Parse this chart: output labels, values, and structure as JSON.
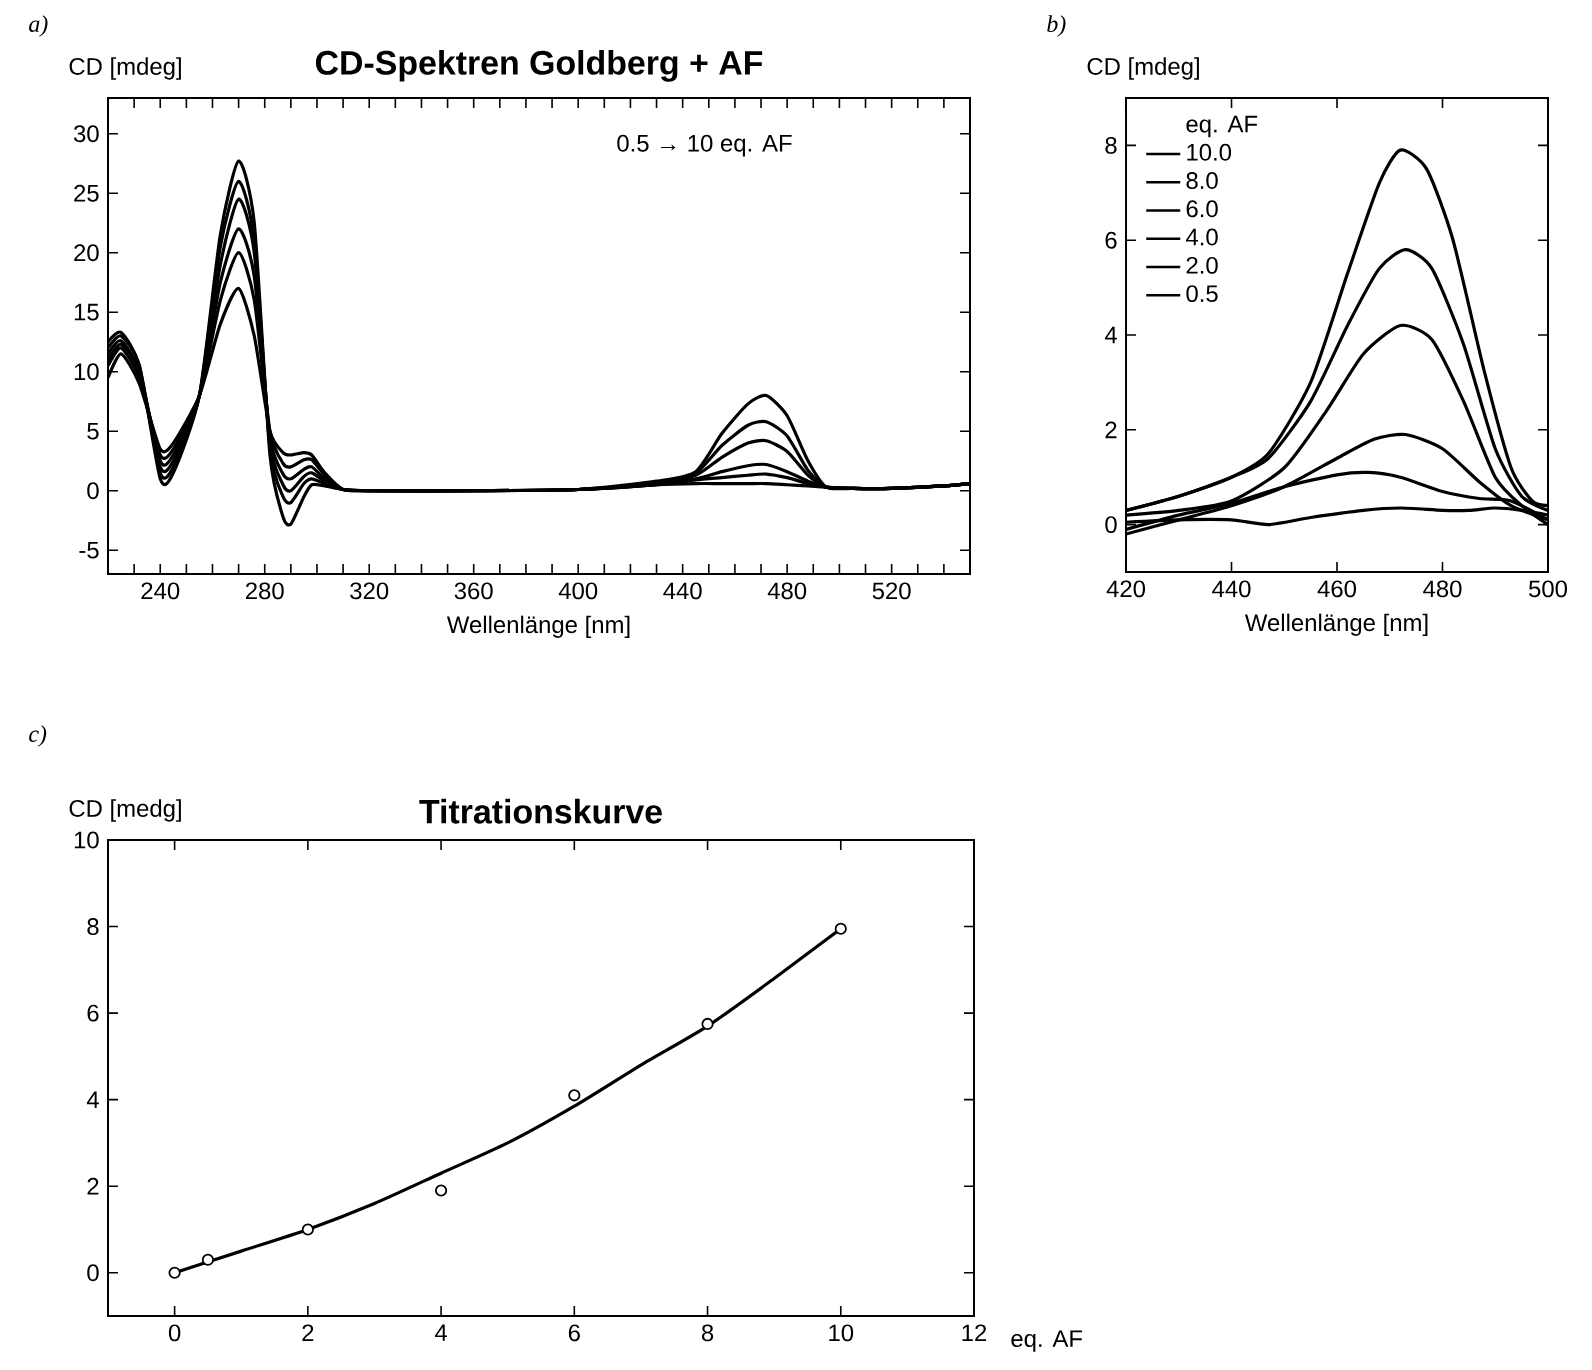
{
  "chart_data": [
    {
      "type": "line",
      "title": "CD-Spektren Goldberg + AF",
      "xlabel": "Wellenlänge [nm]",
      "ylabel": "CD [mdeg]",
      "annotations": [
        "a)",
        "0.5 → 10 eq. AF"
      ],
      "xlim": [
        220,
        550
      ],
      "ylim": [
        -7,
        33
      ],
      "xticks": [
        {
          "value": 230,
          "label": null
        },
        240,
        {
          "value": 250,
          "label": null
        },
        {
          "value": 260,
          "label": null
        },
        {
          "value": 270,
          "label": null
        },
        280,
        {
          "value": 290,
          "label": null
        },
        {
          "value": 300,
          "label": null
        },
        {
          "value": 310,
          "label": null
        },
        320,
        {
          "value": 330,
          "label": null
        },
        {
          "value": 340,
          "label": null
        },
        {
          "value": 350,
          "label": null
        },
        360,
        {
          "value": 370,
          "label": null
        },
        {
          "value": 380,
          "label": null
        },
        {
          "value": 390,
          "label": null
        },
        400,
        {
          "value": 410,
          "label": null
        },
        {
          "value": 420,
          "label": null
        },
        {
          "value": 430,
          "label": null
        },
        440,
        {
          "value": 450,
          "label": null
        },
        {
          "value": 460,
          "label": null
        },
        {
          "value": 470,
          "label": null
        },
        480,
        {
          "value": 490,
          "label": null
        },
        {
          "value": 500,
          "label": null
        },
        {
          "value": 510,
          "label": null
        },
        520,
        {
          "value": 530,
          "label": null
        },
        {
          "value": 540,
          "label": null
        }
      ],
      "yticks": [
        -5,
        0,
        5,
        10,
        15,
        20,
        25,
        30
      ],
      "x": [
        220,
        225,
        232,
        240,
        245,
        255,
        263,
        270,
        276,
        282,
        287,
        290,
        295,
        298,
        303,
        310,
        320,
        360,
        400,
        430,
        445,
        455,
        465,
        472,
        480,
        488,
        495,
        505,
        520,
        540,
        550
      ],
      "series": [
        {
          "color": "#000000",
          "values": [
            9.5,
            11.5,
            9,
            3.5,
            4,
            8,
            14,
            17,
            13,
            5,
            3.2,
            3,
            3.2,
            3,
            1.5,
            0.1,
            0,
            0,
            0.1,
            0.5,
            0.6,
            0.6,
            0.6,
            0.6,
            0.5,
            0.4,
            0.3,
            0.2,
            0.2,
            0.4,
            0.6
          ]
        },
        {
          "color": "#000000",
          "values": [
            10.5,
            12,
            9.5,
            3,
            3.5,
            8,
            16,
            20,
            16,
            5,
            2.3,
            2,
            2.6,
            2.6,
            1.3,
            0.1,
            0,
            0,
            0.1,
            0.5,
            0.9,
            1.1,
            1.3,
            1.4,
            1.1,
            0.6,
            0.3,
            0.2,
            0.2,
            0.4,
            0.6
          ]
        },
        {
          "color": "#000000",
          "values": [
            11,
            12.3,
            10,
            2.5,
            3,
            8,
            17.5,
            22,
            18,
            4.5,
            1.4,
            1,
            1.8,
            2,
            1,
            0.1,
            0,
            0,
            0.1,
            0.5,
            1,
            1.6,
            2.1,
            2.2,
            1.6,
            0.8,
            0.3,
            0.2,
            0.2,
            0.4,
            0.6
          ]
        },
        {
          "color": "#000000",
          "values": [
            11.5,
            12.6,
            10,
            2,
            2.5,
            8,
            19,
            24.5,
            20,
            4,
            0.5,
            0,
            1.2,
            1.5,
            0.8,
            0.1,
            0,
            0,
            0.1,
            0.6,
            1.3,
            2.8,
            4,
            4.2,
            3.3,
            1.3,
            0.3,
            0.2,
            0.2,
            0.4,
            0.6
          ]
        },
        {
          "color": "#000000",
          "values": [
            12,
            13,
            10.5,
            1.5,
            2,
            8,
            20.5,
            26,
            21,
            3.5,
            -0.5,
            -1,
            0.6,
            1,
            0.6,
            0.1,
            0,
            0,
            0.1,
            0.7,
            1.5,
            3.8,
            5.5,
            5.8,
            4.6,
            1.7,
            0.3,
            0.2,
            0.2,
            0.4,
            0.6
          ]
        },
        {
          "color": "#000000",
          "values": [
            12.5,
            13.3,
            10.5,
            1,
            1.5,
            8,
            21.5,
            27.7,
            22.5,
            3,
            -2.2,
            -2.8,
            -0.5,
            0.5,
            0.4,
            0.1,
            0,
            0,
            0.1,
            0.8,
            1.6,
            4.8,
            7.3,
            8,
            6.3,
            2.5,
            0.3,
            0.2,
            0.2,
            0.4,
            0.6
          ]
        }
      ]
    },
    {
      "type": "line",
      "xlabel": "Wellenlänge [nm]",
      "ylabel": "CD [mdeg]",
      "annotations": [
        "b)"
      ],
      "legend": "top left",
      "legend_title": "eq. AF",
      "xlim": [
        420,
        500
      ],
      "ylim": [
        -1,
        9
      ],
      "xticks": [
        420,
        440,
        460,
        480,
        500
      ],
      "yticks": [
        0,
        2,
        4,
        6,
        8
      ],
      "series": [
        {
          "name": "10.0",
          "color": "#000000",
          "x": [
            420,
            430,
            440,
            447,
            455,
            462,
            468,
            472,
            477,
            482,
            488,
            493,
            497,
            500
          ],
          "values": [
            0.3,
            0.6,
            1.0,
            1.5,
            3.0,
            5.3,
            7.2,
            7.9,
            7.5,
            6.0,
            3.2,
            1.2,
            0.5,
            0.4
          ]
        },
        {
          "name": "8.0",
          "color": "#000000",
          "x": [
            420,
            430,
            440,
            447,
            455,
            462,
            468,
            473,
            478,
            484,
            490,
            495,
            500
          ],
          "values": [
            0.3,
            0.6,
            1.0,
            1.4,
            2.6,
            4.2,
            5.4,
            5.8,
            5.4,
            3.8,
            1.6,
            0.6,
            0.3
          ]
        },
        {
          "name": "6.0",
          "color": "#000000",
          "x": [
            420,
            430,
            440,
            450,
            458,
            465,
            472,
            478,
            484,
            490,
            495,
            500
          ],
          "values": [
            0.2,
            0.3,
            0.5,
            1.2,
            2.4,
            3.6,
            4.2,
            3.9,
            2.6,
            1.0,
            0.4,
            0.0
          ]
        },
        {
          "name": "4.0",
          "color": "#000000",
          "x": [
            420,
            430,
            440,
            450,
            460,
            467,
            473,
            480,
            487,
            493,
            500
          ],
          "values": [
            -0.2,
            0.1,
            0.4,
            0.8,
            1.4,
            1.8,
            1.9,
            1.6,
            0.9,
            0.4,
            0.1
          ]
        },
        {
          "name": "2.0",
          "color": "#000000",
          "x": [
            420,
            430,
            440,
            450,
            460,
            466,
            472,
            480,
            487,
            493,
            500
          ],
          "values": [
            -0.1,
            0.2,
            0.45,
            0.8,
            1.05,
            1.1,
            1.0,
            0.7,
            0.55,
            0.5,
            0.1
          ]
        },
        {
          "name": "0.5",
          "color": "#000000",
          "x": [
            420,
            430,
            440,
            447,
            455,
            465,
            472,
            480,
            485,
            490,
            495,
            500
          ],
          "values": [
            0.05,
            0.1,
            0.1,
            0,
            0.15,
            0.3,
            0.35,
            0.3,
            0.3,
            0.35,
            0.3,
            0.2
          ]
        }
      ]
    },
    {
      "type": "scatter",
      "title": "Titrationskurve",
      "xlabel": "eq. AF",
      "ylabel": "CD [medg]",
      "annotations": [
        "c)"
      ],
      "xlim": [
        -1,
        12
      ],
      "ylim": [
        -1,
        10
      ],
      "xticks": [
        0,
        2,
        4,
        6,
        8,
        10,
        12
      ],
      "yticks": [
        0,
        2,
        4,
        6,
        8,
        10
      ],
      "series": [
        {
          "type": "line",
          "color": "#000000",
          "marker": "none",
          "x": [
            0,
            1,
            2,
            3,
            4,
            5,
            6,
            7,
            8,
            9,
            10
          ],
          "values": [
            0,
            0.5,
            1.0,
            1.6,
            2.3,
            3.0,
            3.85,
            4.8,
            5.7,
            6.8,
            7.95
          ]
        },
        {
          "type": "scatter",
          "color": "#000000",
          "marker": "circle",
          "x": [
            0,
            0.5,
            2,
            4,
            6,
            8,
            10
          ],
          "values": [
            0,
            0.3,
            1.0,
            1.9,
            4.1,
            5.75,
            7.95
          ]
        }
      ]
    }
  ]
}
